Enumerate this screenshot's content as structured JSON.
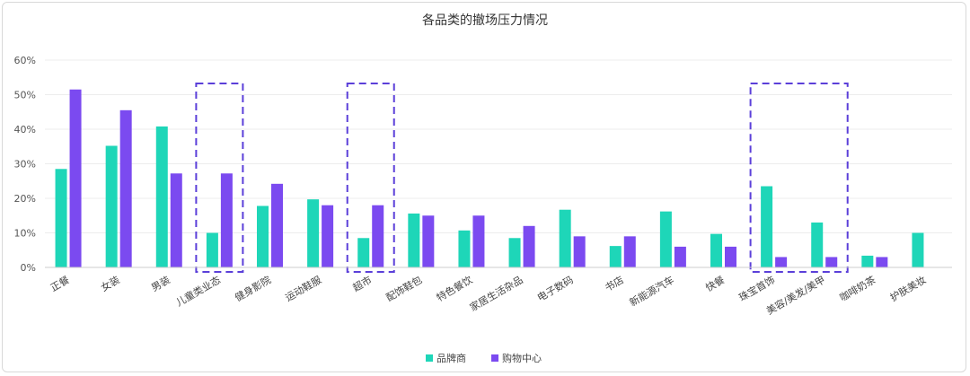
{
  "chart_data": {
    "type": "bar",
    "title": "各品类的撤场压力情况",
    "xlabel": "",
    "ylabel": "",
    "ylim": [
      0,
      0.6
    ],
    "y_ticks": [
      "0%",
      "10%",
      "20%",
      "30%",
      "40%",
      "50%",
      "60%"
    ],
    "grid": true,
    "legend_position": "bottom",
    "categories": [
      "正餐",
      "女装",
      "男装",
      "儿童类业态",
      "健身影院",
      "运动鞋服",
      "超市",
      "配饰鞋包",
      "特色餐饮",
      "家居生活杂品",
      "电子数码",
      "书店",
      "新能源汽车",
      "快餐",
      "珠宝首饰",
      "美容/美发/美甲",
      "咖啡奶茶",
      "护肤美妆"
    ],
    "series": [
      {
        "name": "品牌商",
        "color": "#1ed6b8",
        "values": [
          0.285,
          0.352,
          0.408,
          0.1,
          0.178,
          0.197,
          0.085,
          0.156,
          0.107,
          0.085,
          0.167,
          0.062,
          0.162,
          0.097,
          0.235,
          0.13,
          0.034,
          0.1
        ]
      },
      {
        "name": "购物中心",
        "color": "#7b4af0",
        "values": [
          0.515,
          0.455,
          0.272,
          0.272,
          0.242,
          0.18,
          0.18,
          0.15,
          0.15,
          0.12,
          0.09,
          0.09,
          0.06,
          0.06,
          0.03,
          0.03,
          0.03,
          null
        ]
      }
    ],
    "highlight_groups": [
      {
        "categories": [
          "儿童类业态"
        ],
        "color": "#5b3fd9",
        "style": "dashed"
      },
      {
        "categories": [
          "超市"
        ],
        "color": "#5b3fd9",
        "style": "dashed"
      },
      {
        "categories": [
          "珠宝首饰",
          "美容/美发/美甲"
        ],
        "color": "#5b3fd9",
        "style": "dashed"
      }
    ]
  }
}
